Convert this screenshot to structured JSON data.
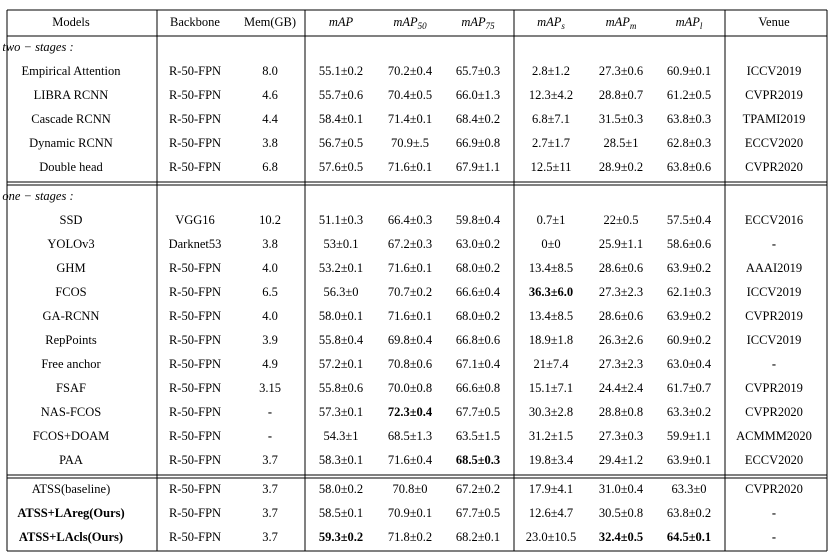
{
  "table": {
    "header": [
      "Models",
      "Backbone",
      "Mem(GB)",
      "mAP",
      {
        "text": "mAP",
        "sub": "50"
      },
      {
        "text": "mAP",
        "sub": "75"
      },
      {
        "text": "mAP",
        "sub": "s"
      },
      {
        "text": "mAP",
        "sub": "m"
      },
      {
        "text": "mAP",
        "sub": "l"
      },
      "Venue"
    ],
    "sections": [
      {
        "label": "two − stages :",
        "rows": [
          {
            "cells": [
              "Empirical Attention",
              "R-50-FPN",
              "8.0",
              "55.1±0.2",
              "70.2±0.4",
              "65.7±0.3",
              "2.8±1.2",
              "27.3±0.6",
              "60.9±0.1",
              "ICCV2019"
            ],
            "bold": []
          },
          {
            "cells": [
              "LIBRA RCNN",
              "R-50-FPN",
              "4.6",
              "55.7±0.6",
              "70.4±0.5",
              "66.0±1.3",
              "12.3±4.2",
              "28.8±0.7",
              "61.2±0.5",
              "CVPR2019"
            ],
            "bold": []
          },
          {
            "cells": [
              "Cascade RCNN",
              "R-50-FPN",
              "4.4",
              "58.4±0.1",
              "71.4±0.1",
              "68.4±0.2",
              "6.8±7.1",
              "31.5±0.3",
              "63.8±0.3",
              "TPAMI2019"
            ],
            "bold": []
          },
          {
            "cells": [
              "Dynamic RCNN",
              "R-50-FPN",
              "3.8",
              "56.7±0.5",
              "70.9±.5",
              "66.9±0.8",
              "2.7±1.7",
              "28.5±1",
              "62.8±0.3",
              "ECCV2020"
            ],
            "bold": []
          },
          {
            "cells": [
              "Double head",
              "R-50-FPN",
              "6.8",
              "57.6±0.5",
              "71.6±0.1",
              "67.9±1.1",
              "12.5±11",
              "28.9±0.2",
              "63.8±0.6",
              "CVPR2020"
            ],
            "bold": []
          }
        ]
      },
      {
        "label": "one − stages :",
        "rows": [
          {
            "cells": [
              "SSD",
              "VGG16",
              "10.2",
              "51.1±0.3",
              "66.4±0.3",
              "59.8±0.4",
              "0.7±1",
              "22±0.5",
              "57.5±0.4",
              "ECCV2016"
            ],
            "bold": []
          },
          {
            "cells": [
              "YOLOv3",
              "Darknet53",
              "3.8",
              "53±0.1",
              "67.2±0.3",
              "63.0±0.2",
              "0±0",
              "25.9±1.1",
              "58.6±0.6",
              "-"
            ],
            "bold": [
              9
            ]
          },
          {
            "cells": [
              "GHM",
              "R-50-FPN",
              "4.0",
              "53.2±0.1",
              "71.6±0.1",
              "68.0±0.2",
              "13.4±8.5",
              "28.6±0.6",
              "63.9±0.2",
              "AAAI2019"
            ],
            "bold": []
          },
          {
            "cells": [
              "FCOS",
              "R-50-FPN",
              "6.5",
              "56.3±0",
              "70.7±0.2",
              "66.6±0.4",
              "36.3±6.0",
              "27.3±2.3",
              "62.1±0.3",
              "ICCV2019"
            ],
            "bold": [
              6
            ]
          },
          {
            "cells": [
              "GA-RCNN",
              "R-50-FPN",
              "4.0",
              "58.0±0.1",
              "71.6±0.1",
              "68.0±0.2",
              "13.4±8.5",
              "28.6±0.6",
              "63.9±0.2",
              "CVPR2019"
            ],
            "bold": []
          },
          {
            "cells": [
              "RepPoints",
              "R-50-FPN",
              "3.9",
              "55.8±0.4",
              "69.8±0.4",
              "66.8±0.6",
              "18.9±1.8",
              "26.3±2.6",
              "60.9±0.2",
              "ICCV2019"
            ],
            "bold": []
          },
          {
            "cells": [
              "Free anchor",
              "R-50-FPN",
              "4.9",
              "57.2±0.1",
              "70.8±0.6",
              "67.1±0.4",
              "21±7.4",
              "27.3±2.3",
              "63.0±0.4",
              "-"
            ],
            "bold": [
              9
            ]
          },
          {
            "cells": [
              "FSAF",
              "R-50-FPN",
              "3.15",
              "55.8±0.6",
              "70.0±0.8",
              "66.6±0.8",
              "15.1±7.1",
              "24.4±2.4",
              "61.7±0.7",
              "CVPR2019"
            ],
            "bold": []
          },
          {
            "cells": [
              "NAS-FCOS",
              "R-50-FPN",
              "-",
              "57.3±0.1",
              "72.3±0.4",
              "67.7±0.5",
              "30.3±2.8",
              "28.8±0.8",
              "63.3±0.2",
              "CVPR2020"
            ],
            "bold": [
              2,
              4
            ]
          },
          {
            "cells": [
              "FCOS+DOAM",
              "R-50-FPN",
              "-",
              "54.3±1",
              "68.5±1.3",
              "63.5±1.5",
              "31.2±1.5",
              "27.3±0.3",
              "59.9±1.1",
              "ACMMM2020"
            ],
            "bold": [
              2
            ]
          },
          {
            "cells": [
              "PAA",
              "R-50-FPN",
              "3.7",
              "58.3±0.1",
              "71.6±0.4",
              "68.5±0.3",
              "19.8±3.4",
              "29.4±1.2",
              "63.9±0.1",
              "ECCV2020"
            ],
            "bold": [
              5
            ]
          }
        ]
      },
      {
        "rows": [
          {
            "cells": [
              "ATSS(baseline)",
              "R-50-FPN",
              "3.7",
              "58.0±0.2",
              "70.8±0",
              "67.2±0.2",
              "17.9±4.1",
              "31.0±0.4",
              "63.3±0",
              "CVPR2020"
            ],
            "bold": []
          },
          {
            "cells": [
              "ATSS+LAreg(Ours)",
              "R-50-FPN",
              "3.7",
              "58.5±0.1",
              "70.9±0.1",
              "67.7±0.5",
              "12.6±4.7",
              "30.5±0.8",
              "63.8±0.2",
              "-"
            ],
            "bold": [
              0,
              9
            ]
          },
          {
            "cells": [
              "ATSS+LAcls(Ours)",
              "R-50-FPN",
              "3.7",
              "59.3±0.2",
              "71.8±0.2",
              "68.2±0.1",
              "23.0±10.5",
              "32.4±0.5",
              "64.5±0.1",
              "-"
            ],
            "bold": [
              0,
              3,
              7,
              8,
              9
            ]
          }
        ]
      }
    ]
  }
}
